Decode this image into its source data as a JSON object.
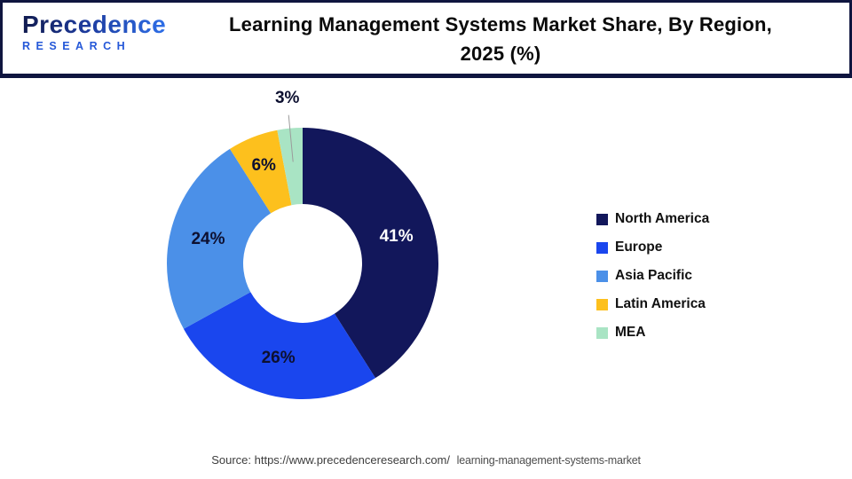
{
  "logo": {
    "name": "Precedence",
    "subtitle": "RESEARCH",
    "gradient_from": "#111B4F",
    "gradient_to": "#2E6FE8",
    "subtitle_color": "#2558D8"
  },
  "header": {
    "title_line1": "Learning Management Systems Market Share, By Region,",
    "title_line2": "2025 (%)",
    "border_color": "#0F153F"
  },
  "chart_data": {
    "type": "pie",
    "subtype": "donut",
    "title": "Learning Management Systems Market Share, By Region, 2025 (%)",
    "categories": [
      "North America",
      "Europe",
      "Asia Pacific",
      "Latin America",
      "MEA"
    ],
    "values": [
      41,
      26,
      24,
      6,
      3
    ],
    "labels": [
      "41%",
      "26%",
      "24%",
      "6%",
      "3%"
    ],
    "unit": "%",
    "colors": [
      "#12175B",
      "#1A46EE",
      "#4B90E8",
      "#FDC01D",
      "#A9E4C4"
    ],
    "label_colors": [
      "#FFFFFF",
      "#0D1030",
      "#0D1030",
      "#0D1030",
      "#0D1030"
    ],
    "start_angle_deg": 0,
    "direction": "clockwise",
    "donut_hole_ratio": 0.44,
    "legend_position": "right",
    "outside_labels": [
      "MEA"
    ],
    "leader_line_color": "#9B9B9B"
  },
  "footer": {
    "source_prefix": "Source: https://www.precedenceresearch.com/",
    "source_link": "learning-management-systems-market"
  }
}
